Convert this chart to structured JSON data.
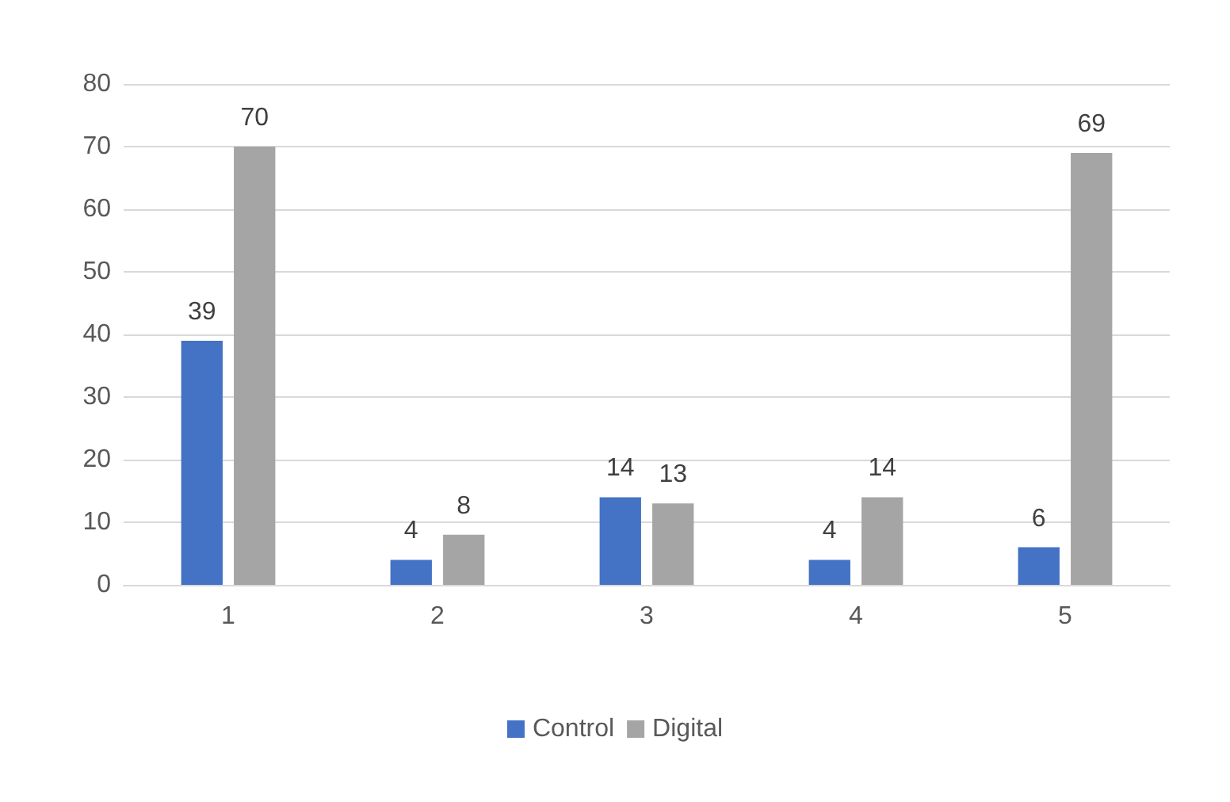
{
  "chart_data": {
    "type": "bar",
    "categories": [
      "1",
      "2",
      "3",
      "4",
      "5"
    ],
    "series": [
      {
        "name": "Control",
        "color": "#4472c4",
        "values": [
          39,
          4,
          14,
          4,
          6
        ]
      },
      {
        "name": "Digital",
        "color": "#a5a5a5",
        "values": [
          70,
          8,
          13,
          14,
          69
        ]
      }
    ],
    "ylim": [
      0,
      80
    ],
    "yticks": [
      0,
      10,
      20,
      30,
      40,
      50,
      60,
      70,
      80
    ],
    "grid": "y",
    "legend": "bottom",
    "data_labels": true
  }
}
